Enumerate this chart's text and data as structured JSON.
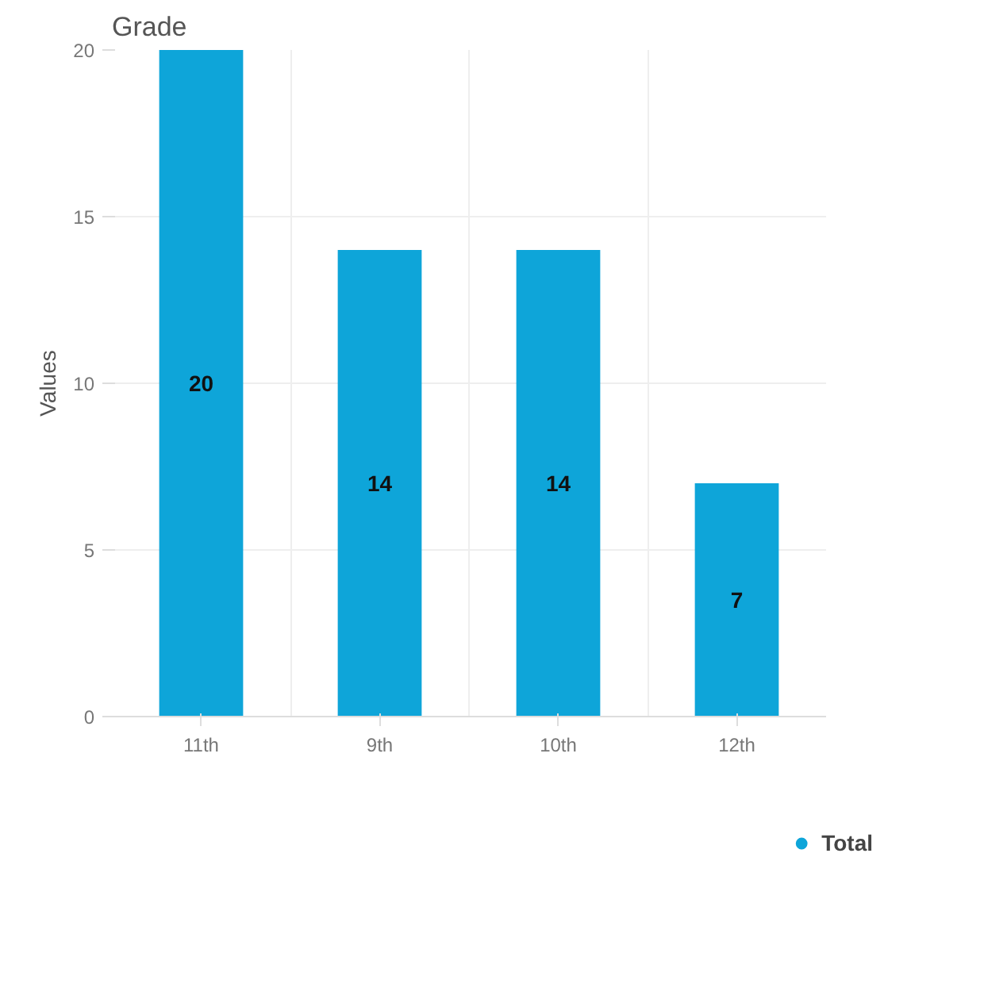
{
  "chart_data": {
    "type": "bar",
    "title": "Grade",
    "ylabel": "Values",
    "categories": [
      "11th",
      "9th",
      "10th",
      "12th"
    ],
    "series": [
      {
        "name": "Total",
        "color": "#0ea5d9",
        "values": [
          20,
          14,
          14,
          7
        ]
      }
    ],
    "ylim": [
      0,
      20
    ],
    "yticks": [
      0,
      5,
      10,
      15,
      20
    ],
    "grid": true,
    "legend": "bottom right",
    "data_labels": true
  }
}
